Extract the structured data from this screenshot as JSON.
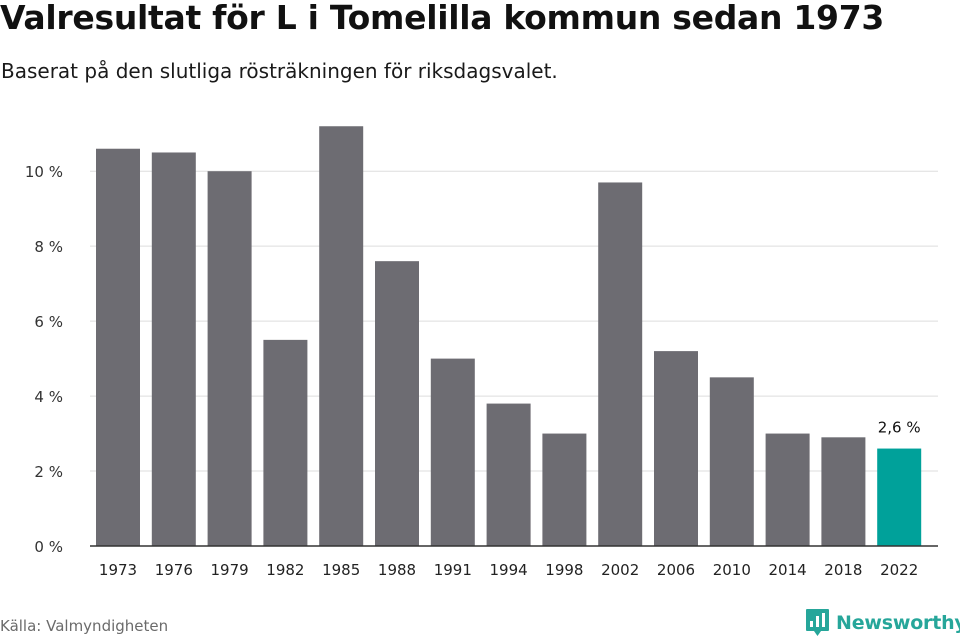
{
  "title": "Valresultat för L i Tomelilla kommun sedan 1973",
  "subtitle": "Baserat på den slutliga rösträkningen för riksdagsvalet.",
  "source": "Källa: Valmyndigheten",
  "logo_text": "Newsworthy",
  "colors": {
    "bar": "#6d6c72",
    "highlight": "#00a19a",
    "grid": "#dddddd",
    "axis": "#333333",
    "brand": "#26a69a"
  },
  "chart_data": {
    "type": "bar",
    "categories": [
      "1973",
      "1976",
      "1979",
      "1982",
      "1985",
      "1988",
      "1991",
      "1994",
      "1998",
      "2002",
      "2006",
      "2010",
      "2014",
      "2018",
      "2022"
    ],
    "values": [
      10.6,
      10.5,
      10.0,
      5.5,
      11.2,
      7.6,
      5.0,
      3.8,
      3.0,
      9.7,
      5.2,
      4.5,
      3.0,
      2.9,
      2.6
    ],
    "ylim": [
      0,
      11.5
    ],
    "yticks": [
      0,
      2,
      4,
      6,
      8,
      10
    ],
    "ytick_labels": [
      "0 %",
      "2 %",
      "4 %",
      "6 %",
      "8 %",
      "10 %"
    ],
    "highlight_index": 14,
    "data_labels": [
      {
        "index": 14,
        "text": "2,6 %"
      }
    ],
    "grid": true,
    "xlabel": "",
    "ylabel": ""
  }
}
